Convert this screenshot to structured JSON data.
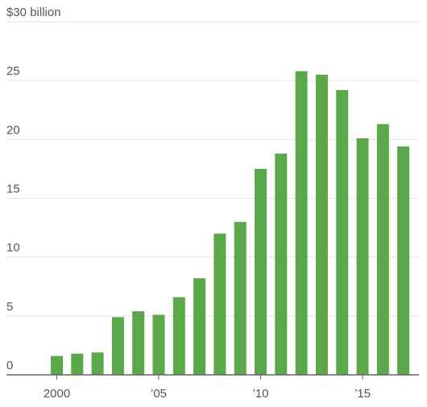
{
  "chart_data": {
    "type": "bar",
    "x": [
      2000,
      2001,
      2002,
      2003,
      2004,
      2005,
      2006,
      2007,
      2008,
      2009,
      2010,
      2011,
      2012,
      2013,
      2014,
      2015,
      2016,
      2017
    ],
    "values": [
      1.6,
      1.8,
      1.9,
      4.9,
      5.4,
      5.1,
      6.6,
      8.2,
      12.0,
      13.0,
      17.5,
      18.8,
      25.8,
      25.5,
      24.2,
      20.1,
      21.3,
      19.4
    ],
    "ylim": [
      0,
      30
    ],
    "y_ticks": [
      0,
      5,
      10,
      15,
      20,
      25,
      30
    ],
    "y_tick_labels": [
      "0",
      "5",
      "10",
      "15",
      "20",
      "25",
      "$30 billion"
    ],
    "x_ticks": [
      2000,
      2005,
      2010,
      2015
    ],
    "x_tick_labels": [
      "2000",
      "’05",
      "’10",
      "’15"
    ],
    "grid": "horizontal",
    "legend": "none",
    "bar_color": "#5aa84a"
  }
}
